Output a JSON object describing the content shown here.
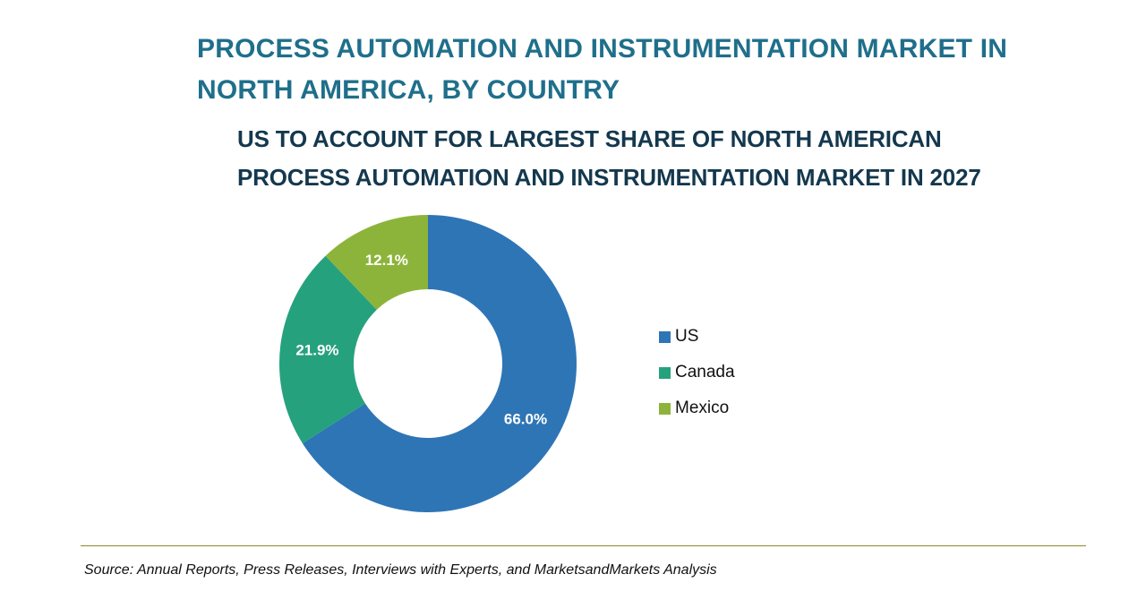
{
  "header": {
    "title": "PROCESS AUTOMATION AND INSTRUMENTATION MARKET IN NORTH AMERICA, BY COUNTRY",
    "subtitle": "US TO ACCOUNT FOR LARGEST SHARE OF NORTH AMERICAN PROCESS AUTOMATION AND INSTRUMENTATION MARKET IN 2027"
  },
  "chart_data": {
    "type": "pie",
    "variant": "donut",
    "categories": [
      "US",
      "Canada",
      "Mexico"
    ],
    "values": [
      66.0,
      21.9,
      12.1
    ],
    "labels": [
      "66.0%",
      "21.9%",
      "12.1%"
    ],
    "colors": [
      "#2e75b6",
      "#26a17d",
      "#8db43a"
    ],
    "legend_position": "right",
    "title": "",
    "unit": "%"
  },
  "footer": {
    "source": "Source: Annual Reports, Press Releases, Interviews with Experts, and MarketsandMarkets Analysis"
  }
}
